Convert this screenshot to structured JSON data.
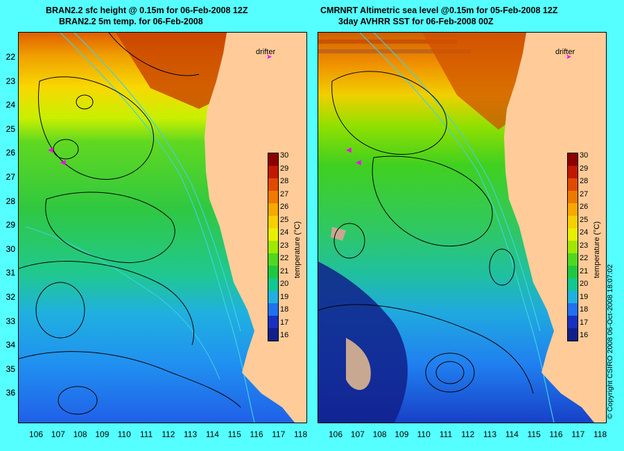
{
  "left": {
    "title_line1": "BRAN2.2 sfc height @ 0.15m for 06-Feb-2008 12Z",
    "title_line2": "BRAN2.2 5m temp. for 06-Feb-2008",
    "drifter_label": "drifter"
  },
  "right": {
    "title_line1": "CMRNRT Altimetric sea level  @0.15m  for 05-Feb-2008 12Z",
    "title_line2": "3day AVHRR SST for 06-Feb-2008 00Z",
    "drifter_label": "drifter"
  },
  "lat_labels": [
    "22",
    "23",
    "24",
    "25",
    "26",
    "27",
    "28",
    "29",
    "30",
    "31",
    "32",
    "33",
    "34",
    "35",
    "36"
  ],
  "lon_labels": [
    "106",
    "107",
    "108",
    "109",
    "110",
    "111",
    "112",
    "113",
    "114",
    "115",
    "116",
    "117",
    "118"
  ],
  "colorbar": {
    "ticks": [
      "30",
      "29",
      "28",
      "27",
      "26",
      "25",
      "24",
      "23",
      "22",
      "21",
      "20",
      "19",
      "18",
      "17",
      "16"
    ],
    "title": "temperature (°C)",
    "colors": [
      "#8b0000",
      "#c21800",
      "#e04a00",
      "#f07a00",
      "#f8a800",
      "#f8d000",
      "#e8f000",
      "#a0e800",
      "#50d820",
      "#20c840",
      "#10c890",
      "#20b0e0",
      "#2070f0",
      "#1830c0",
      "#10208a"
    ]
  },
  "copyright": "© Copyright CSIRO 2008    06-Oct-2008 18:07:02",
  "colors": {
    "background": "#55ffff",
    "land": "#ffcc99",
    "drifter": "#ff00ff",
    "contour": "#000000",
    "bathymetry": "#40d0e0",
    "nodata": "#c8a890"
  }
}
